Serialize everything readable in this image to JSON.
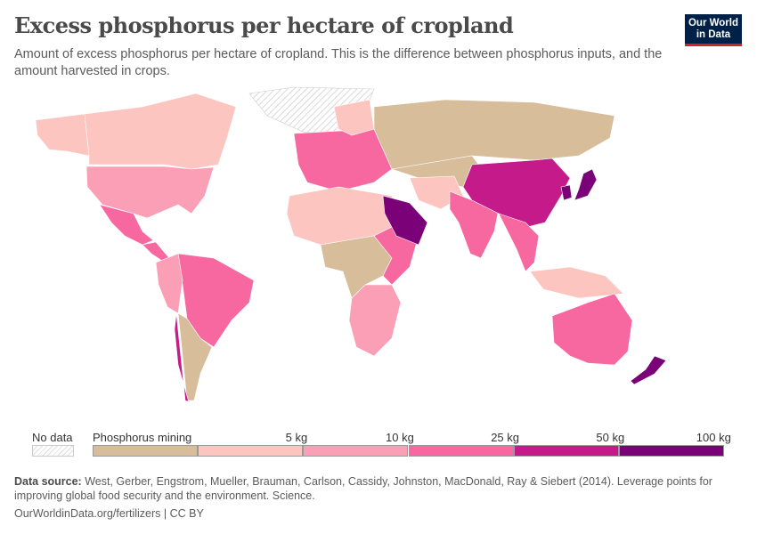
{
  "header": {
    "title": "Excess phosphorus per hectare of cropland",
    "subtitle": "Amount of excess phosphorus per hectare of cropland. This is the difference between phosphorus inputs, and the amount harvested in crops.",
    "logo": "Our World in Data"
  },
  "legend": {
    "no_data_label": "No data",
    "bins": [
      {
        "label": "Phosphorus mining",
        "color": "#d8bd9b"
      },
      {
        "label": "5 kg",
        "color": "#fcc5c0"
      },
      {
        "label": "10 kg",
        "color": "#fa9fb5"
      },
      {
        "label": "25 kg",
        "color": "#f768a1"
      },
      {
        "label": "50 kg",
        "color": "#c51b8a"
      },
      {
        "label": "100 kg",
        "color": "#7a0177"
      }
    ]
  },
  "map": {
    "regions": [
      {
        "name": "greenland",
        "bin": "no-data"
      },
      {
        "name": "alaska",
        "bin": 1
      },
      {
        "name": "canada",
        "bin": 1
      },
      {
        "name": "usa",
        "bin": 2
      },
      {
        "name": "mexico",
        "bin": 3
      },
      {
        "name": "central-america",
        "bin": 3
      },
      {
        "name": "brazil",
        "bin": 3
      },
      {
        "name": "andes",
        "bin": 2
      },
      {
        "name": "argentina",
        "bin": 0
      },
      {
        "name": "chile",
        "bin": 4
      },
      {
        "name": "europe",
        "bin": 3
      },
      {
        "name": "scandinavia",
        "bin": 1
      },
      {
        "name": "russia",
        "bin": 0
      },
      {
        "name": "central-asia",
        "bin": 0
      },
      {
        "name": "north-africa",
        "bin": 1
      },
      {
        "name": "central-africa",
        "bin": 0
      },
      {
        "name": "east-africa",
        "bin": 3
      },
      {
        "name": "southern-africa",
        "bin": 2
      },
      {
        "name": "saudi-arabia",
        "bin": 5
      },
      {
        "name": "iran",
        "bin": 1
      },
      {
        "name": "india",
        "bin": 3
      },
      {
        "name": "china",
        "bin": 4
      },
      {
        "name": "japan",
        "bin": 5
      },
      {
        "name": "south-korea",
        "bin": 5
      },
      {
        "name": "southeast-asia",
        "bin": 3
      },
      {
        "name": "indonesia",
        "bin": 1
      },
      {
        "name": "australia",
        "bin": 3
      },
      {
        "name": "new-zealand",
        "bin": 5
      }
    ]
  },
  "footer": {
    "source_label": "Data source:",
    "source_text": "West, Gerber, Engstrom, Mueller, Brauman, Carlson, Cassidy, Johnston, MacDonald, Ray & Siebert (2014). Leverage points for improving global food security and the environment. Science.",
    "url": "OurWorldinData.org/fertilizers | CC BY"
  }
}
